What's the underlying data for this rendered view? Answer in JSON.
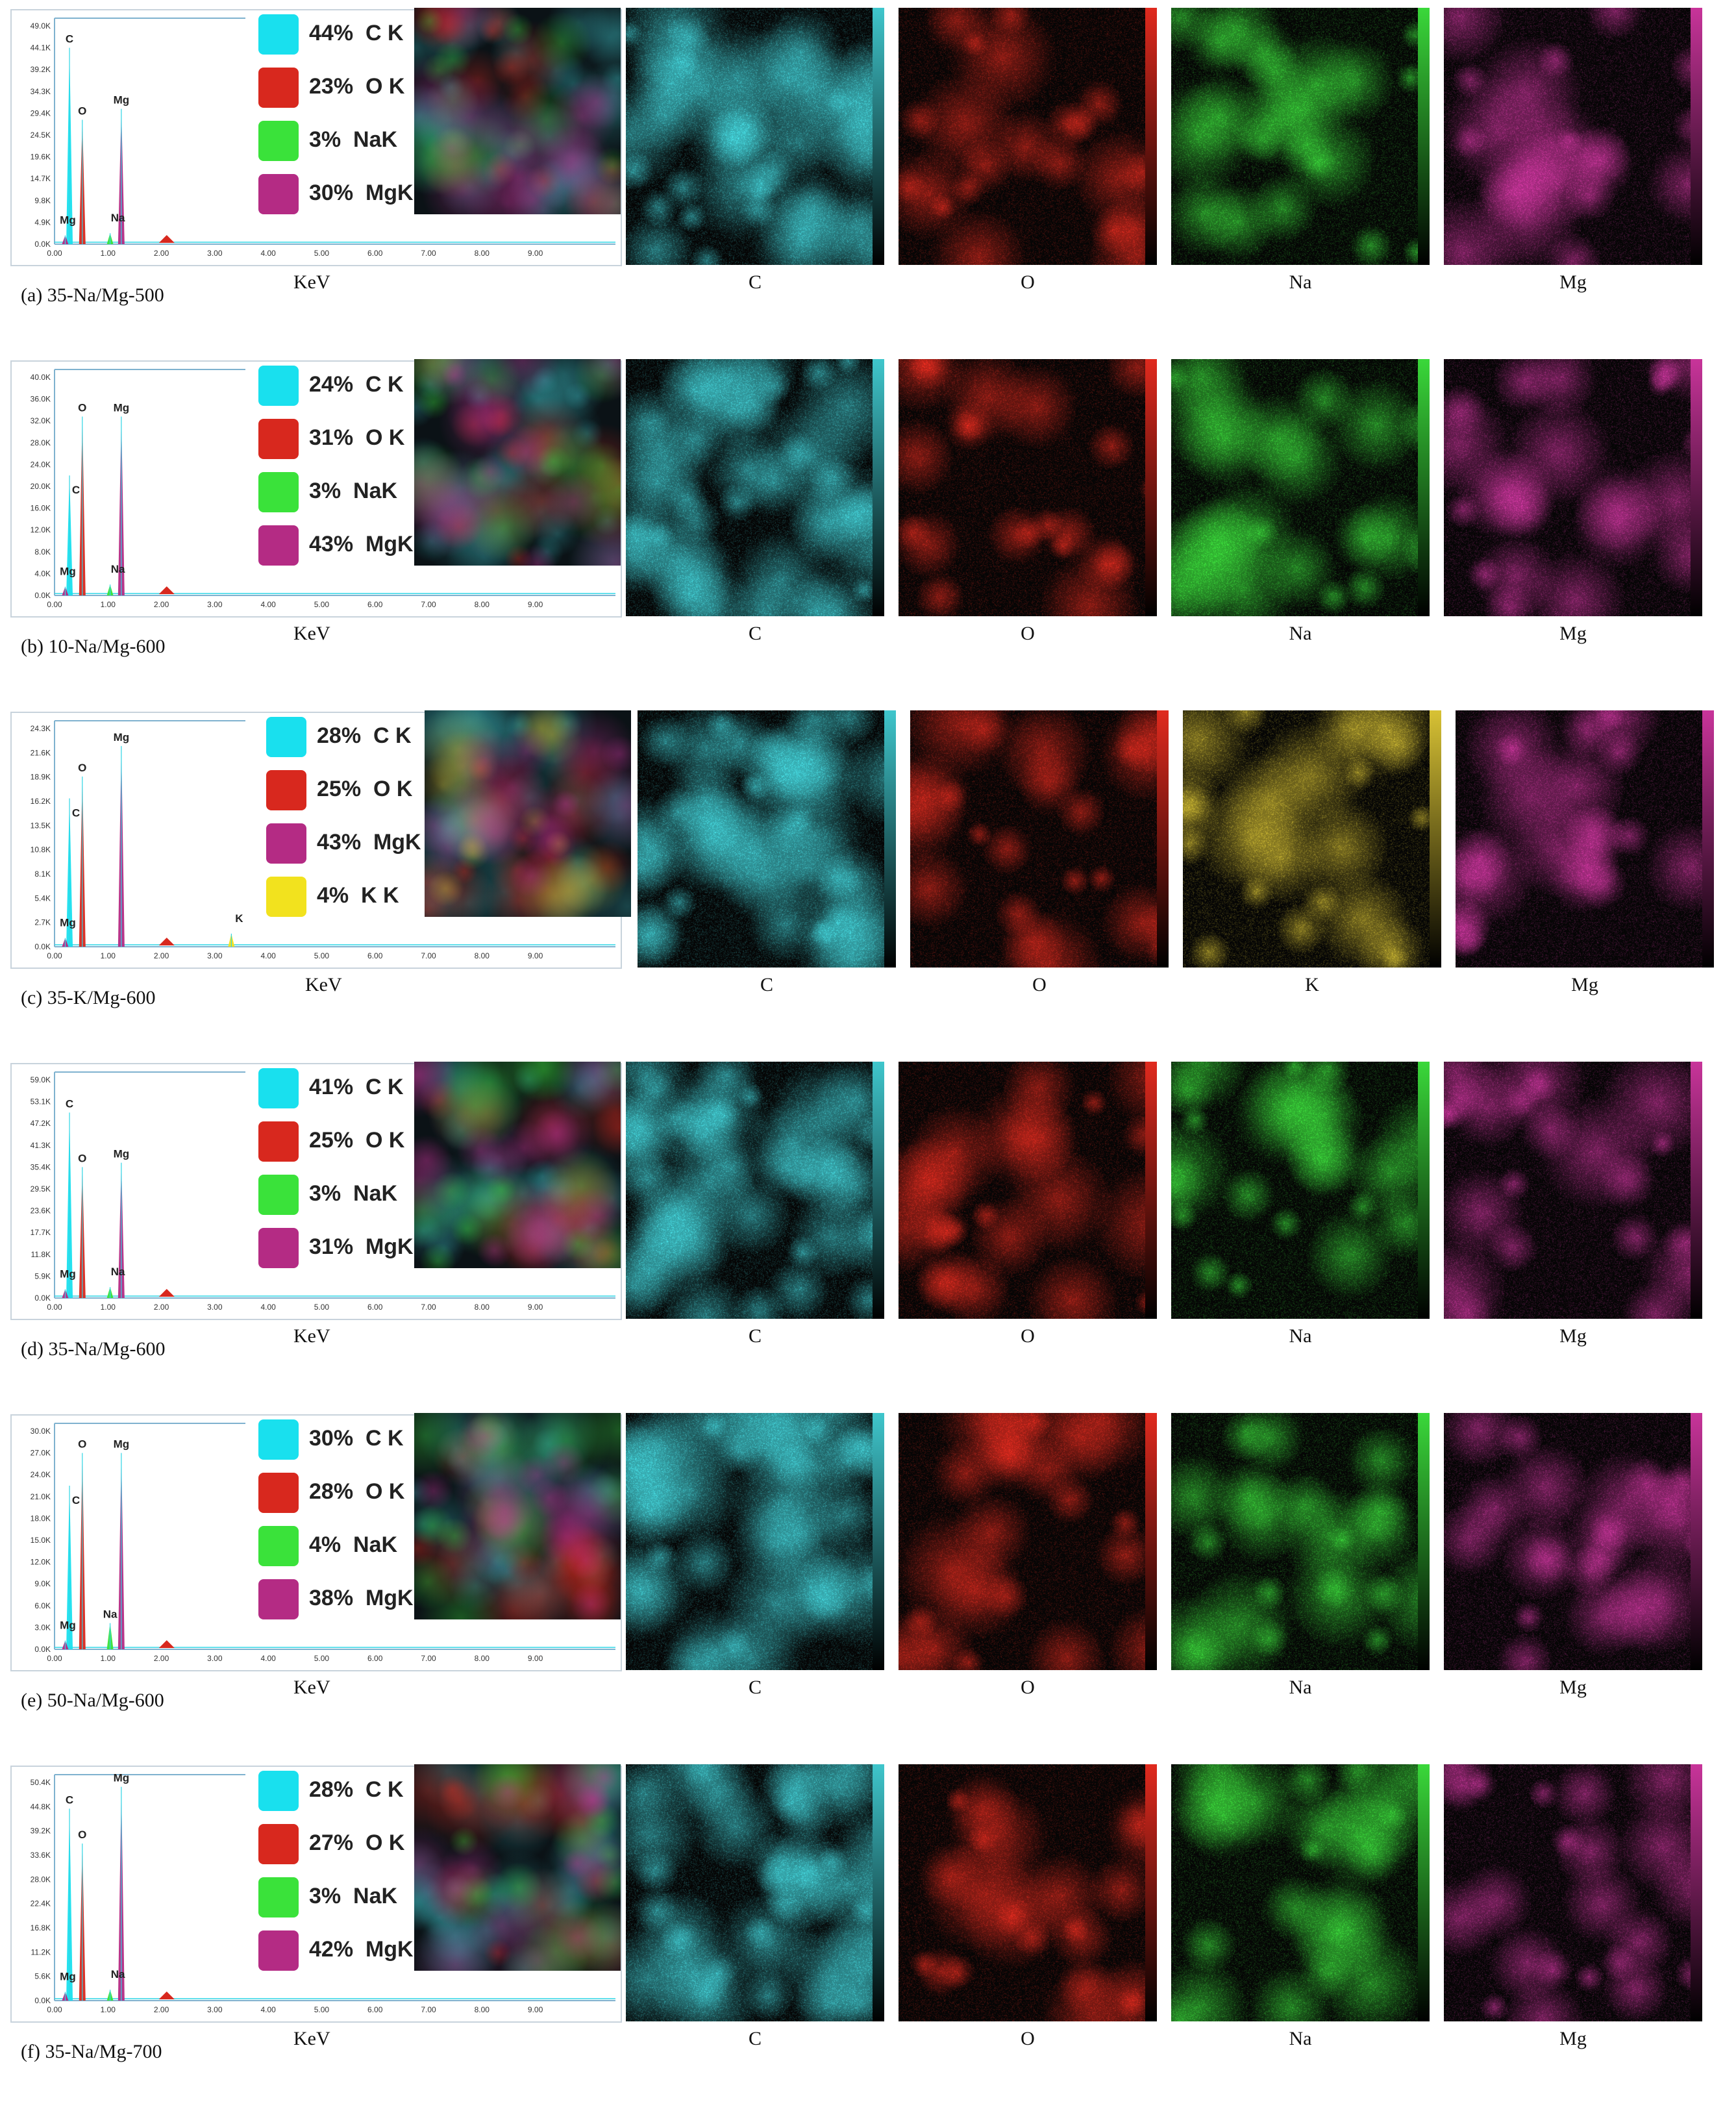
{
  "rows": [
    {
      "caption": "(a) 35-Na/Mg-500",
      "kev_label": "KeV",
      "legend": [
        {
          "text": "44%  C K",
          "color": "#19e0ee"
        },
        {
          "text": "23%  O K",
          "color": "#d8281e"
        },
        {
          "text": "3%  NaK",
          "color": "#3ae23a"
        },
        {
          "text": "30%  MgK",
          "color": "#b42b84"
        }
      ],
      "y_ticks": [
        "49.0K",
        "44.1K",
        "39.2K",
        "34.3K",
        "29.4K",
        "24.5K",
        "19.6K",
        "14.7K",
        "9.8K",
        "4.9K",
        "0.0K"
      ],
      "peaks": [
        {
          "label": "C",
          "kev": 0.28,
          "height": 0.9,
          "color": "#19e0ee"
        },
        {
          "label": "O",
          "kev": 0.52,
          "height": 0.57,
          "color": "#d8281e"
        },
        {
          "label": "Mg",
          "kev": 1.25,
          "height": 0.62,
          "color": "#b42b84"
        },
        {
          "label": "Na",
          "kev": 1.04,
          "height": 0.05,
          "color": "#3ae23a"
        },
        {
          "label": "Mg",
          "kev": 0.2,
          "height": 0.04,
          "color": "#b42b84"
        }
      ],
      "maps": [
        {
          "label": "C",
          "color": "#3fc6cc"
        },
        {
          "label": "O",
          "color": "#e02a1e"
        },
        {
          "label": "Na",
          "color": "#3ad83a"
        },
        {
          "label": "Mg",
          "color": "#c8349a"
        }
      ]
    },
    {
      "caption": "(b) 10-Na/Mg-600",
      "kev_label": "KeV",
      "legend": [
        {
          "text": "24%  C K",
          "color": "#19e0ee"
        },
        {
          "text": "31%  O K",
          "color": "#d8281e"
        },
        {
          "text": "3%  NaK",
          "color": "#3ae23a"
        },
        {
          "text": "43%  MgK",
          "color": "#b42b84"
        }
      ],
      "y_ticks": [
        "40.0K",
        "36.0K",
        "32.0K",
        "28.0K",
        "24.0K",
        "20.0K",
        "16.0K",
        "12.0K",
        "8.0K",
        "4.0K",
        "0.0K"
      ],
      "peaks": [
        {
          "label": "C",
          "kev": 0.28,
          "height": 0.55,
          "color": "#19e0ee"
        },
        {
          "label": "O",
          "kev": 0.52,
          "height": 0.82,
          "color": "#d8281e"
        },
        {
          "label": "Mg",
          "kev": 1.25,
          "height": 0.82,
          "color": "#b42b84"
        },
        {
          "label": "Na",
          "kev": 1.04,
          "height": 0.05,
          "color": "#3ae23a"
        },
        {
          "label": "Mg",
          "kev": 0.2,
          "height": 0.04,
          "color": "#b42b84"
        }
      ],
      "maps": [
        {
          "label": "C",
          "color": "#3fc6cc"
        },
        {
          "label": "O",
          "color": "#e02a1e"
        },
        {
          "label": "Na",
          "color": "#3ad83a"
        },
        {
          "label": "Mg",
          "color": "#c8349a"
        }
      ]
    },
    {
      "caption": "(c) 35-K/Mg-600",
      "kev_label": "KeV",
      "legend": [
        {
          "text": "28%  C K",
          "color": "#19e0ee"
        },
        {
          "text": "25%  O K",
          "color": "#d8281e"
        },
        {
          "text": "43%  MgK",
          "color": "#b42b84"
        },
        {
          "text": "4%  K K",
          "color": "#f2e21e"
        }
      ],
      "y_ticks": [
        "24.3K",
        "21.6K",
        "18.9K",
        "16.2K",
        "13.5K",
        "10.8K",
        "8.1K",
        "5.4K",
        "2.7K",
        "0.0K"
      ],
      "peaks": [
        {
          "label": "C",
          "kev": 0.28,
          "height": 0.68,
          "color": "#19e0ee"
        },
        {
          "label": "O",
          "kev": 0.52,
          "height": 0.78,
          "color": "#d8281e"
        },
        {
          "label": "Mg",
          "kev": 1.25,
          "height": 0.92,
          "color": "#b42b84"
        },
        {
          "label": "K",
          "kev": 3.31,
          "height": 0.06,
          "color": "#f2e21e"
        },
        {
          "label": "Mg",
          "kev": 0.2,
          "height": 0.04,
          "color": "#b42b84"
        }
      ],
      "maps": [
        {
          "label": "C",
          "color": "#3fc6cc"
        },
        {
          "label": "O",
          "color": "#e02a1e"
        },
        {
          "label": "K",
          "color": "#d8c234"
        },
        {
          "label": "Mg",
          "color": "#c8349a"
        }
      ]
    },
    {
      "caption": "(d) 35-Na/Mg-600",
      "kev_label": "KeV",
      "legend": [
        {
          "text": "41%  C K",
          "color": "#19e0ee"
        },
        {
          "text": "25%  O K",
          "color": "#d8281e"
        },
        {
          "text": "3%  NaK",
          "color": "#3ae23a"
        },
        {
          "text": "31%  MgK",
          "color": "#b42b84"
        }
      ],
      "y_ticks": [
        "59.0K",
        "53.1K",
        "47.2K",
        "41.3K",
        "35.4K",
        "29.5K",
        "23.6K",
        "17.7K",
        "11.8K",
        "5.9K",
        "0.0K"
      ],
      "peaks": [
        {
          "label": "C",
          "kev": 0.28,
          "height": 0.85,
          "color": "#19e0ee"
        },
        {
          "label": "O",
          "kev": 0.52,
          "height": 0.6,
          "color": "#d8281e"
        },
        {
          "label": "Mg",
          "kev": 1.25,
          "height": 0.62,
          "color": "#b42b84"
        },
        {
          "label": "Na",
          "kev": 1.04,
          "height": 0.05,
          "color": "#3ae23a"
        },
        {
          "label": "Mg",
          "kev": 0.2,
          "height": 0.04,
          "color": "#b42b84"
        }
      ],
      "maps": [
        {
          "label": "C",
          "color": "#3fc6cc"
        },
        {
          "label": "O",
          "color": "#e02a1e"
        },
        {
          "label": "Na",
          "color": "#3ad83a"
        },
        {
          "label": "Mg",
          "color": "#c8349a"
        }
      ]
    },
    {
      "caption": "(e) 50-Na/Mg-600",
      "kev_label": "KeV",
      "legend": [
        {
          "text": "30%  C K",
          "color": "#19e0ee"
        },
        {
          "text": "28%  O K",
          "color": "#d8281e"
        },
        {
          "text": "4%  NaK",
          "color": "#3ae23a"
        },
        {
          "text": "38%  MgK",
          "color": "#b42b84"
        }
      ],
      "y_ticks": [
        "30.0K",
        "27.0K",
        "24.0K",
        "21.0K",
        "18.0K",
        "15.0K",
        "12.0K",
        "9.0K",
        "6.0K",
        "3.0K",
        "0.0K"
      ],
      "peaks": [
        {
          "label": "C",
          "kev": 0.28,
          "height": 0.75,
          "color": "#19e0ee"
        },
        {
          "label": "O",
          "kev": 0.52,
          "height": 0.9,
          "color": "#d8281e"
        },
        {
          "label": "Mg",
          "kev": 1.25,
          "height": 0.9,
          "color": "#b42b84"
        },
        {
          "label": "Na",
          "kev": 1.04,
          "height": 0.12,
          "color": "#3ae23a"
        },
        {
          "label": "Mg",
          "kev": 0.2,
          "height": 0.04,
          "color": "#b42b84"
        }
      ],
      "maps": [
        {
          "label": "C",
          "color": "#3fc6cc"
        },
        {
          "label": "O",
          "color": "#e02a1e"
        },
        {
          "label": "Na",
          "color": "#3ad83a"
        },
        {
          "label": "Mg",
          "color": "#c8349a"
        }
      ]
    },
    {
      "caption": "(f) 35-Na/Mg-700",
      "kev_label": "KeV",
      "legend": [
        {
          "text": "28%  C K",
          "color": "#19e0ee"
        },
        {
          "text": "27%  O K",
          "color": "#d8281e"
        },
        {
          "text": "3%  NaK",
          "color": "#3ae23a"
        },
        {
          "text": "42%  MgK",
          "color": "#b42b84"
        }
      ],
      "y_ticks": [
        "50.4K",
        "44.8K",
        "39.2K",
        "33.6K",
        "28.0K",
        "22.4K",
        "16.8K",
        "11.2K",
        "5.6K",
        "0.0K"
      ],
      "peaks": [
        {
          "label": "C",
          "kev": 0.28,
          "height": 0.88,
          "color": "#19e0ee"
        },
        {
          "label": "O",
          "kev": 0.52,
          "height": 0.72,
          "color": "#d8281e"
        },
        {
          "label": "Mg",
          "kev": 1.25,
          "height": 0.98,
          "color": "#b42b84"
        },
        {
          "label": "Na",
          "kev": 1.04,
          "height": 0.05,
          "color": "#3ae23a"
        },
        {
          "label": "Mg",
          "kev": 0.2,
          "height": 0.04,
          "color": "#b42b84"
        }
      ],
      "maps": [
        {
          "label": "C",
          "color": "#3fc6cc"
        },
        {
          "label": "O",
          "color": "#e02a1e"
        },
        {
          "label": "Na",
          "color": "#3ad83a"
        },
        {
          "label": "Mg",
          "color": "#c8349a"
        }
      ]
    }
  ],
  "x_ticks": [
    "0.00",
    "1.00",
    "2.00",
    "3.00",
    "4.00",
    "5.00",
    "6.00",
    "7.00",
    "8.00",
    "9.00"
  ]
}
